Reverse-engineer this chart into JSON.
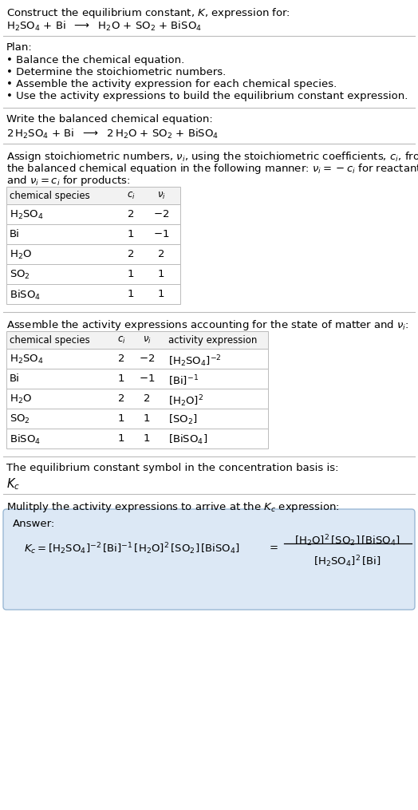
{
  "title_line1": "Construct the equilibrium constant, $K$, expression for:",
  "title_line2": "$\\mathrm{H_2SO_4}$ + Bi  $\\longrightarrow$  $\\mathrm{H_2O}$ + $\\mathrm{SO_2}$ + $\\mathrm{BiSO_4}$",
  "plan_header": "Plan:",
  "plan_items": [
    "• Balance the chemical equation.",
    "• Determine the stoichiometric numbers.",
    "• Assemble the activity expression for each chemical species.",
    "• Use the activity expressions to build the equilibrium constant expression."
  ],
  "balanced_header": "Write the balanced chemical equation:",
  "balanced_eq": "$2\\,\\mathrm{H_2SO_4}$ + Bi  $\\longrightarrow$  $2\\,\\mathrm{H_2O}$ + $\\mathrm{SO_2}$ + $\\mathrm{BiSO_4}$",
  "stoich_line1": "Assign stoichiometric numbers, $\\nu_i$, using the stoichiometric coefficients, $c_i$, from",
  "stoich_line2": "the balanced chemical equation in the following manner: $\\nu_i = -c_i$ for reactants",
  "stoich_line3": "and $\\nu_i = c_i$ for products:",
  "table1_cols": [
    "chemical species",
    "$c_i$",
    "$\\nu_i$"
  ],
  "table1_rows": [
    [
      "$\\mathrm{H_2SO_4}$",
      "2",
      "$-2$"
    ],
    [
      "Bi",
      "1",
      "$-1$"
    ],
    [
      "$\\mathrm{H_2O}$",
      "2",
      "2"
    ],
    [
      "$\\mathrm{SO_2}$",
      "1",
      "1"
    ],
    [
      "$\\mathrm{BiSO_4}$",
      "1",
      "1"
    ]
  ],
  "activity_header": "Assemble the activity expressions accounting for the state of matter and $\\nu_i$:",
  "table2_cols": [
    "chemical species",
    "$c_i$",
    "$\\nu_i$",
    "activity expression"
  ],
  "table2_rows": [
    [
      "$\\mathrm{H_2SO_4}$",
      "2",
      "$-2$",
      "$[\\mathrm{H_2SO_4}]^{-2}$"
    ],
    [
      "Bi",
      "1",
      "$-1$",
      "$[\\mathrm{Bi}]^{-1}$"
    ],
    [
      "$\\mathrm{H_2O}$",
      "2",
      "2",
      "$[\\mathrm{H_2O}]^{2}$"
    ],
    [
      "$\\mathrm{SO_2}$",
      "1",
      "1",
      "$[\\mathrm{SO_2}]$"
    ],
    [
      "$\\mathrm{BiSO_4}$",
      "1",
      "1",
      "$[\\mathrm{BiSO_4}]$"
    ]
  ],
  "kc_header": "The equilibrium constant symbol in the concentration basis is:",
  "kc_symbol": "$K_c$",
  "multiply_header": "Mulitply the activity expressions to arrive at the $K_c$ expression:",
  "answer_label": "Answer:",
  "bg_color": "#ffffff",
  "text_color": "#000000",
  "table_line_color": "#bbbbbb",
  "answer_box_facecolor": "#dce8f5",
  "answer_box_edgecolor": "#9ab8d4",
  "divider_color": "#bbbbbb",
  "font_size": 9.5,
  "small_font": 8.5
}
